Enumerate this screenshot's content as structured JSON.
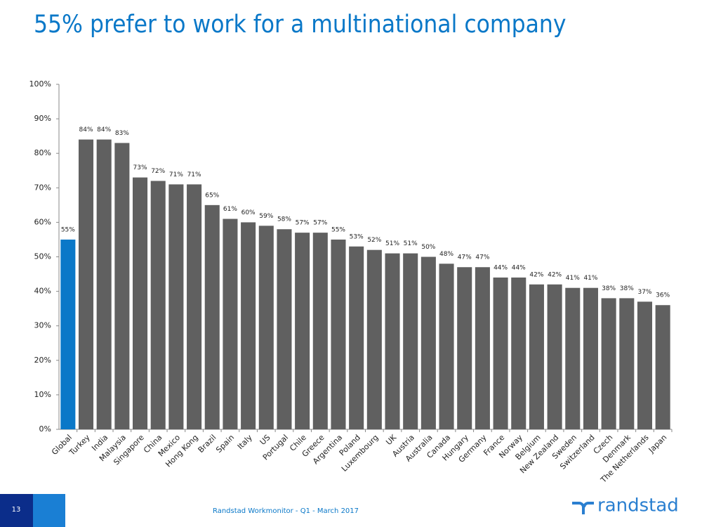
{
  "chart_data": {
    "type": "bar",
    "title": "55% prefer to work for a multinational company",
    "categories": [
      "Global",
      "Turkey",
      "India",
      "Malaysia",
      "Singapore",
      "China",
      "Mexico",
      "Hong Kong",
      "Brazil",
      "Spain",
      "Italy",
      "US",
      "Portugal",
      "Chile",
      "Greece",
      "Argentina",
      "Poland",
      "Luxembourg",
      "UK",
      "Austria",
      "Australia",
      "Canada",
      "Hungary",
      "Germany",
      "France",
      "Norway",
      "Belgium",
      "New Zealand",
      "Sweden",
      "Switzerland",
      "Czech",
      "Denmark",
      "The Netherlands",
      "Japan"
    ],
    "values": [
      55,
      84,
      84,
      83,
      73,
      72,
      71,
      71,
      65,
      61,
      60,
      59,
      58,
      57,
      57,
      55,
      53,
      52,
      51,
      51,
      50,
      48,
      47,
      47,
      44,
      44,
      42,
      42,
      41,
      41,
      38,
      38,
      37,
      36
    ],
    "value_labels": [
      "55%",
      "84%",
      "84%",
      "83%",
      "73%",
      "72%",
      "71%",
      "71%",
      "65%",
      "61%",
      "60%",
      "59%",
      "58%",
      "57%",
      "57%",
      "55%",
      "53%",
      "52%",
      "51%",
      "51%",
      "50%",
      "48%",
      "47%",
      "47%",
      "44%",
      "44%",
      "42%",
      "42%",
      "41%",
      "41%",
      "38%",
      "38%",
      "37%",
      "36%"
    ],
    "colors": [
      "#0a78c8",
      "#606060",
      "#606060",
      "#606060",
      "#606060",
      "#606060",
      "#606060",
      "#606060",
      "#606060",
      "#606060",
      "#606060",
      "#606060",
      "#606060",
      "#606060",
      "#606060",
      "#606060",
      "#606060",
      "#606060",
      "#606060",
      "#606060",
      "#606060",
      "#606060",
      "#606060",
      "#606060",
      "#606060",
      "#606060",
      "#606060",
      "#606060",
      "#606060",
      "#606060",
      "#606060",
      "#606060",
      "#606060",
      "#606060"
    ],
    "ylim": [
      0,
      100
    ],
    "yticks": [
      {
        "value": 0,
        "label": "0%"
      },
      {
        "value": 10,
        "label": "10%"
      },
      {
        "value": 20,
        "label": "20%"
      },
      {
        "value": 30,
        "label": "30%"
      },
      {
        "value": 40,
        "label": "40%"
      },
      {
        "value": 50,
        "label": "50%"
      },
      {
        "value": 60,
        "label": "60%"
      },
      {
        "value": 70,
        "label": "70%"
      },
      {
        "value": 80,
        "label": "80%"
      },
      {
        "value": 90,
        "label": "90%"
      },
      {
        "value": 100,
        "label": "100%"
      }
    ],
    "grid": false
  },
  "footer": {
    "page_number": "13",
    "source": "Randstad Workmonitor - Q1 - March 2017",
    "logo": "randstad"
  }
}
